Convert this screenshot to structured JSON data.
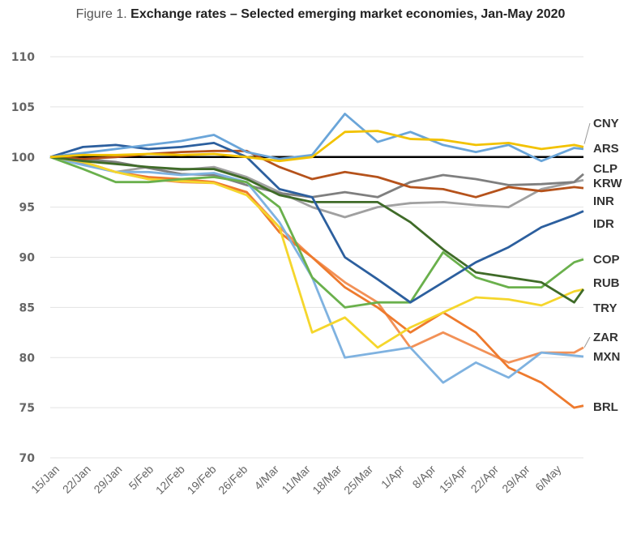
{
  "title": {
    "prefix": "Figure 1.",
    "main": "Exchange rates – Selected emerging market economies, Jan-May 2020"
  },
  "chart_data": {
    "type": "line",
    "ylim": [
      70,
      110
    ],
    "yticks": [
      70,
      75,
      80,
      85,
      90,
      95,
      100,
      105,
      110
    ],
    "xticks": [
      "15/Jan",
      "22/Jan",
      "29/Jan",
      "5/Feb",
      "12/Feb",
      "19/Feb",
      "26/Feb",
      "4/Mar",
      "11/Mar",
      "18/Mar",
      "25/Mar",
      "1/Apr",
      "8/Apr",
      "15/Apr",
      "22/Apr",
      "29/Apr",
      "6/May"
    ],
    "reference_line": 100,
    "grid": true,
    "colors": {
      "CNY": "#f2c200",
      "ARS": "#6aa5d9",
      "CLP": "#7f7f7f",
      "KRW": "#a0a0a0",
      "INR": "#b5521b",
      "IDR": "#2c5f9e",
      "COP": "#6ab04c",
      "RUB": "#3f6b28",
      "TRY": "#f5d62c",
      "ZAR": "#f29157",
      "MXN": "#7fb2e0",
      "BRL": "#ee7a2d"
    },
    "series": [
      {
        "name": "CNY",
        "x": [
          0,
          7,
          14,
          21,
          28,
          35,
          42,
          49,
          56,
          63,
          70,
          77,
          84,
          91,
          98,
          105,
          112,
          114
        ],
        "values": [
          100,
          100.2,
          100.2,
          100.3,
          100.2,
          100.3,
          100,
          99.6,
          100,
          102.5,
          102.6,
          101.8,
          101.7,
          101.2,
          101.4,
          100.8,
          101.2,
          101
        ]
      },
      {
        "name": "ARS",
        "x": [
          0,
          7,
          14,
          21,
          28,
          35,
          42,
          49,
          56,
          63,
          70,
          77,
          84,
          91,
          98,
          105,
          112,
          114
        ],
        "values": [
          100,
          100.4,
          100.8,
          101.2,
          101.6,
          102.2,
          100.5,
          99.8,
          100.2,
          104.3,
          101.5,
          102.5,
          101.2,
          100.5,
          101.2,
          99.6,
          100.9,
          100.8
        ]
      },
      {
        "name": "CLP",
        "x": [
          0,
          7,
          14,
          21,
          28,
          35,
          42,
          49,
          56,
          63,
          70,
          77,
          84,
          91,
          98,
          105,
          112,
          114
        ],
        "values": [
          100,
          99.8,
          99.5,
          98.9,
          98.3,
          98.2,
          97.2,
          96.4,
          96,
          96.5,
          96,
          97.5,
          98.2,
          97.8,
          97.2,
          97.3,
          97.5,
          98.3
        ]
      },
      {
        "name": "KRW",
        "x": [
          0,
          7,
          14,
          21,
          28,
          35,
          42,
          49,
          56,
          63,
          70,
          77,
          84,
          91,
          98,
          105,
          112,
          114
        ],
        "values": [
          100,
          99.4,
          98.5,
          99,
          98.7,
          99,
          98,
          96.5,
          95,
          94,
          95,
          95.4,
          95.5,
          95.2,
          95,
          96.8,
          97.5,
          97.7
        ]
      },
      {
        "name": "INR",
        "x": [
          0,
          7,
          14,
          21,
          28,
          35,
          42,
          49,
          56,
          63,
          70,
          77,
          84,
          91,
          98,
          105,
          112,
          114
        ],
        "values": [
          100,
          99.8,
          100,
          100.3,
          100.5,
          100.6,
          100.6,
          99,
          97.8,
          98.5,
          98,
          97,
          96.8,
          96,
          97,
          96.6,
          97,
          96.9
        ]
      },
      {
        "name": "IDR",
        "x": [
          0,
          7,
          14,
          21,
          28,
          35,
          42,
          49,
          56,
          63,
          70,
          77,
          84,
          91,
          98,
          105,
          112,
          114
        ],
        "values": [
          100,
          101,
          101.2,
          100.8,
          101,
          101.4,
          100,
          96.8,
          96,
          90,
          87.8,
          85.5,
          87.5,
          89.5,
          91,
          93,
          94.2,
          94.6
        ]
      },
      {
        "name": "COP",
        "x": [
          0,
          7,
          14,
          21,
          28,
          35,
          42,
          49,
          56,
          63,
          70,
          77,
          84,
          91,
          98,
          105,
          112,
          114
        ],
        "values": [
          100,
          98.8,
          97.5,
          97.5,
          97.8,
          98,
          97.5,
          95,
          88,
          85,
          85.5,
          85.5,
          90.5,
          88,
          87,
          87,
          89.5,
          89.8
        ]
      },
      {
        "name": "RUB",
        "x": [
          0,
          7,
          14,
          21,
          28,
          35,
          42,
          49,
          56,
          63,
          70,
          77,
          84,
          91,
          98,
          105,
          112,
          114
        ],
        "values": [
          100,
          99.6,
          99.3,
          99,
          98.8,
          98.8,
          97.8,
          96.2,
          95.5,
          95.5,
          95.5,
          93.5,
          90.8,
          88.5,
          88,
          87.5,
          85.5,
          86.8
        ]
      },
      {
        "name": "TRY",
        "x": [
          0,
          7,
          14,
          21,
          28,
          35,
          42,
          49,
          56,
          63,
          70,
          77,
          84,
          91,
          98,
          105,
          112,
          114
        ],
        "values": [
          100,
          99.5,
          98.5,
          97.8,
          97.6,
          97.4,
          96.2,
          93,
          82.5,
          84,
          81,
          83,
          84.5,
          86,
          85.8,
          85.2,
          86.6,
          86.8
        ]
      },
      {
        "name": "ZAR",
        "x": [
          0,
          7,
          14,
          21,
          28,
          35,
          42,
          49,
          56,
          63,
          70,
          77,
          84,
          91,
          98,
          105,
          112,
          114
        ],
        "values": [
          100,
          99.5,
          98.5,
          97.8,
          97.5,
          97.4,
          96.5,
          93,
          90,
          87.5,
          85.5,
          81,
          82.5,
          81,
          79.5,
          80.5,
          80.5,
          81
        ]
      },
      {
        "name": "MXN",
        "x": [
          0,
          7,
          14,
          21,
          28,
          35,
          42,
          49,
          56,
          63,
          70,
          77,
          84,
          91,
          98,
          105,
          112,
          114
        ],
        "values": [
          100,
          99.2,
          98.5,
          98.5,
          98.2,
          98.4,
          97.5,
          93.5,
          88,
          80,
          80.5,
          81,
          77.5,
          79.5,
          78,
          80.5,
          80.2,
          80.1
        ]
      },
      {
        "name": "BRL",
        "x": [
          0,
          7,
          14,
          21,
          28,
          35,
          42,
          49,
          56,
          63,
          70,
          77,
          84,
          91,
          98,
          105,
          112,
          114
        ],
        "values": [
          100,
          99.5,
          98.5,
          98,
          97.8,
          97.5,
          96.5,
          92.5,
          90,
          87,
          85,
          82.5,
          84.5,
          82.5,
          79,
          77.5,
          75,
          75.2
        ]
      }
    ]
  }
}
